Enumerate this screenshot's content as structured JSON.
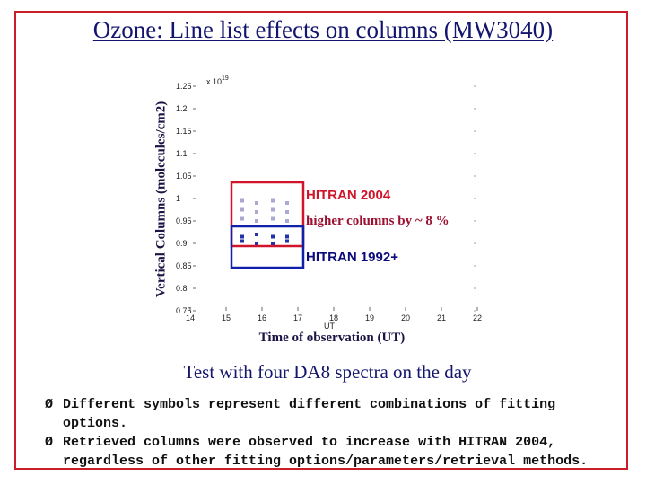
{
  "slide": {
    "title": "Ozone: Line list effects on columns (MW3040)",
    "test_text": "Test with four DA8 spectra on the day",
    "bullet_marker": "Ø",
    "bullets": [
      "Different symbols represent different combinations of fitting options.",
      "Retrieved columns were observed to increase with HITRAN 2004,"
    ],
    "bullet_continuation": "regardless of other fitting options/parameters/retrieval methods."
  },
  "chart_data": {
    "type": "scatter",
    "title": "",
    "xlabel": "Time of observation (UT)",
    "xlabel_small": "UT",
    "ylabel": "Vertical Columns (molecules/cm2)",
    "y_multiplier": "x 10",
    "y_multiplier_exp": "19",
    "xlim": [
      14,
      22
    ],
    "ylim": [
      0.75,
      1.25
    ],
    "x_ticks": [
      14,
      15,
      16,
      17,
      18,
      19,
      20,
      21,
      22
    ],
    "y_ticks": [
      0.75,
      0.8,
      0.85,
      0.9,
      0.95,
      1,
      1.05,
      1.1,
      1.15,
      1.2,
      1.25
    ],
    "y_tick_labels": [
      "0.75",
      "0.8",
      "0.85",
      "0.9",
      "0.95",
      "1",
      "1.05",
      "1.1",
      "1.15",
      "1.2",
      "1.25"
    ],
    "series": [
      {
        "name": "HITRAN 2004",
        "color": "#a8a8d0",
        "points": [
          [
            15.45,
            0.995
          ],
          [
            15.45,
            0.975
          ],
          [
            15.45,
            0.955
          ],
          [
            15.85,
            0.99
          ],
          [
            15.85,
            0.97
          ],
          [
            15.85,
            0.95
          ],
          [
            16.3,
            0.995
          ],
          [
            16.3,
            0.975
          ],
          [
            16.3,
            0.955
          ],
          [
            16.7,
            0.99
          ],
          [
            16.7,
            0.97
          ],
          [
            16.7,
            0.95
          ]
        ]
      },
      {
        "name": "HITRAN 1992+",
        "color": "#2233aa",
        "points": [
          [
            15.45,
            0.915
          ],
          [
            15.45,
            0.905
          ],
          [
            15.85,
            0.92
          ],
          [
            15.85,
            0.9
          ],
          [
            16.3,
            0.915
          ],
          [
            16.3,
            0.9
          ],
          [
            16.7,
            0.915
          ],
          [
            16.7,
            0.905
          ]
        ]
      }
    ],
    "annotations": {
      "upper": "HITRAN 2004",
      "middle": "higher columns by ~ 8 %",
      "lower": "HITRAN 1992+"
    },
    "colors": {
      "upper_box": "#d0152b",
      "lower_box": "#1020a8"
    }
  }
}
